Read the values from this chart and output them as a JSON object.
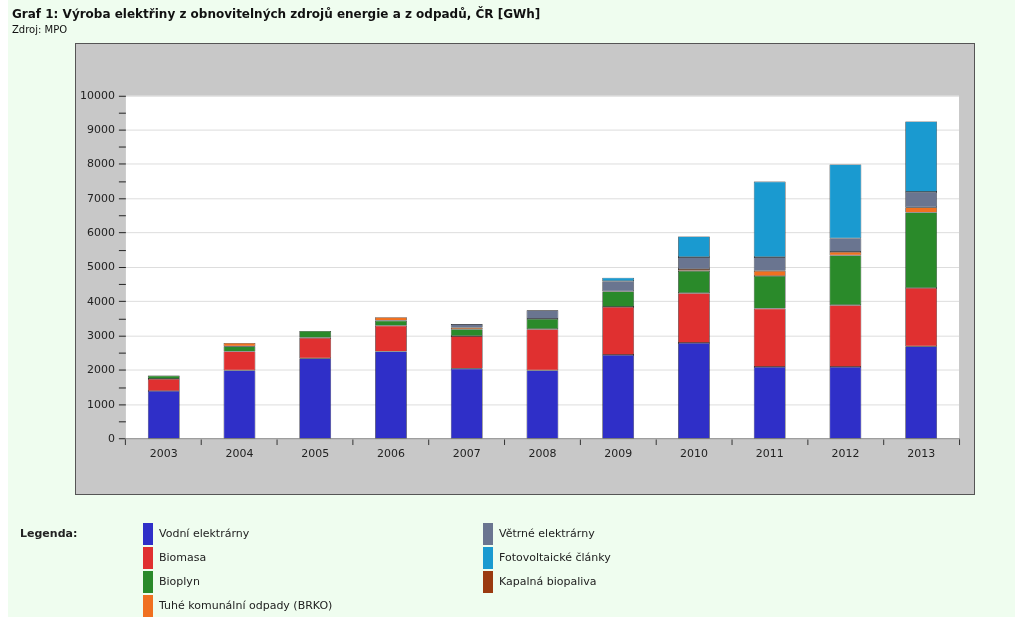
{
  "chart_data": {
    "type": "bar",
    "title": "Graf 1: Výroba elektřiny z obnovitelných zdrojů energie a z odpadů, ČR [GWh]",
    "annotations": [
      "Zdroj: MPO"
    ],
    "legend_title": "Legenda:",
    "categories": [
      "2003",
      "2004",
      "2005",
      "2006",
      "2007",
      "2008",
      "2009",
      "2010",
      "2011",
      "2012",
      "2013"
    ],
    "stacked": true,
    "grid": "y",
    "legend": "bottom",
    "ylim": [
      0,
      10000
    ],
    "yticks": [
      0,
      {
        "value": 500,
        "label": null
      },
      1000,
      {
        "value": 1500,
        "label": null
      },
      2000,
      {
        "value": 2500,
        "label": null
      },
      3000,
      {
        "value": 3500,
        "label": null
      },
      4000,
      {
        "value": 4500,
        "label": null
      },
      5000,
      {
        "value": 5500,
        "label": null
      },
      6000,
      {
        "value": 6500,
        "label": null
      },
      7000,
      {
        "value": 7500,
        "label": null
      },
      8000,
      {
        "value": 8500,
        "label": null
      },
      9000,
      {
        "value": 9500,
        "label": null
      },
      10000
    ],
    "series": [
      {
        "name": "Vodní elektrárny",
        "color": "#2f2fc8",
        "values": [
          1400,
          2000,
          2350,
          2550,
          2050,
          2000,
          2450,
          2800,
          2100,
          2100,
          2700
        ]
      },
      {
        "name": "Biomasa",
        "color": "#e03030",
        "values": [
          350,
          550,
          600,
          750,
          950,
          1200,
          1400,
          1450,
          1700,
          1800,
          1700
        ]
      },
      {
        "name": "Bioplyn",
        "color": "#2a8a2a",
        "values": [
          100,
          150,
          200,
          150,
          200,
          300,
          450,
          650,
          950,
          1450,
          2200
        ]
      },
      {
        "name": "Tuhé komunální odpady (BRKO)",
        "color": "#f07020",
        "values": [
          null,
          100,
          null,
          100,
          50,
          null,
          null,
          50,
          150,
          100,
          150
        ]
      },
      {
        "name": "Větrné elektrárny",
        "color": "#6a7590",
        "values": [
          null,
          null,
          null,
          null,
          100,
          250,
          300,
          350,
          400,
          400,
          450
        ]
      },
      {
        "name": "Fotovoltaické články",
        "color": "#1a9ad0",
        "values": [
          null,
          null,
          null,
          null,
          null,
          null,
          100,
          600,
          2200,
          2150,
          2050
        ]
      },
      {
        "name": "Kapalná biopaliva",
        "color": "#9a3a10",
        "values": [
          null,
          null,
          null,
          null,
          null,
          null,
          null,
          null,
          null,
          null,
          null
        ]
      }
    ]
  }
}
